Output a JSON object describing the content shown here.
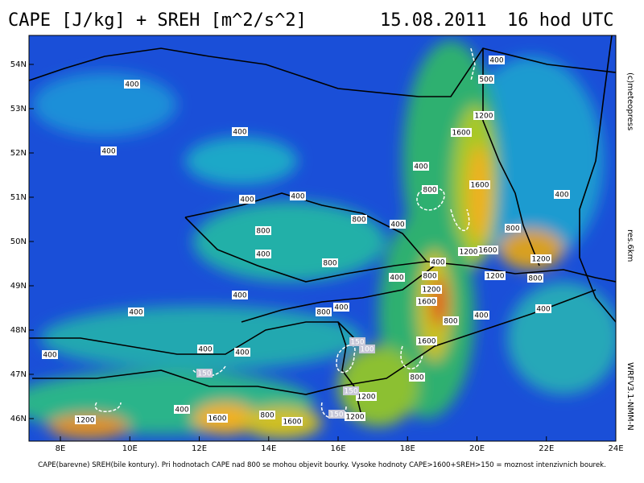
{
  "header": {
    "title": "CAPE [J/kg] + SREH [m^2/s^2]",
    "date": "15.08.2011",
    "time": "16 hod UTC"
  },
  "map": {
    "lat_ticks": [
      {
        "value": 54,
        "label": "54N"
      },
      {
        "value": 53,
        "label": "53N"
      },
      {
        "value": 52,
        "label": "52N"
      },
      {
        "value": 51,
        "label": "51N"
      },
      {
        "value": 50,
        "label": "50N"
      },
      {
        "value": 49,
        "label": "49N"
      },
      {
        "value": 48,
        "label": "48N"
      },
      {
        "value": 47,
        "label": "47N"
      },
      {
        "value": 46,
        "label": "46N"
      }
    ],
    "lon_ticks": [
      {
        "value": 8,
        "label": "8E"
      },
      {
        "value": 10,
        "label": "10E"
      },
      {
        "value": 12,
        "label": "12E"
      },
      {
        "value": 14,
        "label": "14E"
      },
      {
        "value": 16,
        "label": "16E"
      },
      {
        "value": 18,
        "label": "18E"
      },
      {
        "value": 20,
        "label": "20E"
      },
      {
        "value": 22,
        "label": "22E"
      },
      {
        "value": 24,
        "label": "24E"
      }
    ],
    "cape_labels": [
      400,
      500,
      1200,
      400,
      400,
      400,
      1600,
      400,
      1600,
      800,
      400,
      400,
      400,
      800,
      400,
      800,
      800,
      400,
      800,
      1200,
      1600,
      1200,
      400,
      800,
      400,
      1200,
      800,
      1200,
      400,
      1600,
      400,
      800,
      400,
      400,
      400,
      800,
      400,
      400,
      400,
      1600,
      800,
      1200,
      1200,
      400,
      800,
      1600,
      1600,
      1200
    ],
    "sreh_labels": [
      150,
      100,
      150,
      150,
      150
    ]
  },
  "side": {
    "copyright": "(c)meteopress",
    "resolution": "res.6km",
    "model": "WRFV3.1-NMM-N"
  },
  "footer": "CAPE(barevne) SREH(bile kontury). Pri hodnotach CAPE nad 800 se mohou objevit bourky. Vysoke hodnoty CAPE>1600+SREH>150 = moznost intenzivnich bourek."
}
